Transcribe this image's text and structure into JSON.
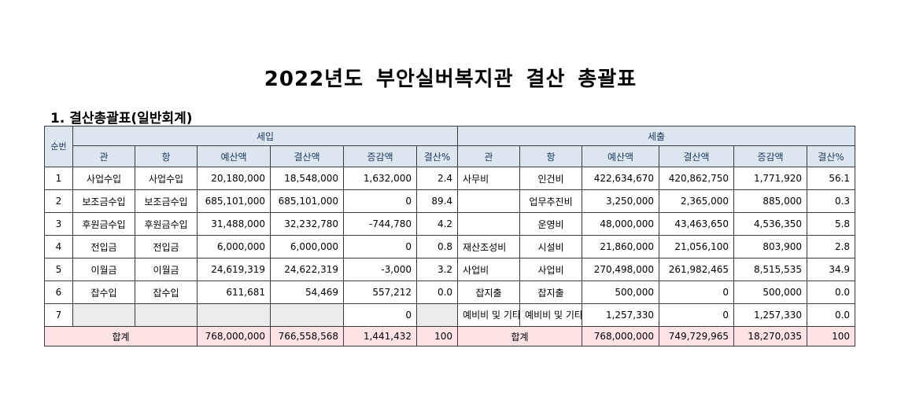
{
  "title": "2022년도 부안실버복지관 결산 총괄표",
  "section_label": "1. 결산총괄표(일반회계)",
  "headers": {
    "sunbeon": "순번",
    "income": "세입",
    "expense": "세출",
    "gwan": "관",
    "hang": "항",
    "budget": "예산액",
    "settled": "결산액",
    "diff": "증감액",
    "pct": "결산%"
  },
  "rows": [
    {
      "no": "1",
      "in_gwan": "사업수입",
      "in_hang": "사업수입",
      "in_budget": "20,180,000",
      "in_settled": "18,548,000",
      "in_diff": "1,632,000",
      "in_pct": "2.4",
      "ex_gwan": "사무비",
      "ex_hang": "인건비",
      "ex_budget": "422,634,670",
      "ex_settled": "420,862,750",
      "ex_diff": "1,771,920",
      "ex_pct": "56.1"
    },
    {
      "no": "2",
      "in_gwan": "보조금수입",
      "in_hang": "보조금수입",
      "in_budget": "685,101,000",
      "in_settled": "685,101,000",
      "in_diff": "0",
      "in_pct": "89.4",
      "ex_gwan": "",
      "ex_hang": "업무추진비",
      "ex_budget": "3,250,000",
      "ex_settled": "2,365,000",
      "ex_diff": "885,000",
      "ex_pct": "0.3"
    },
    {
      "no": "3",
      "in_gwan": "후원금수입",
      "in_hang": "후원금수입",
      "in_budget": "31,488,000",
      "in_settled": "32,232,780",
      "in_diff": "-744,780",
      "in_pct": "4.2",
      "ex_gwan": "",
      "ex_hang": "운영비",
      "ex_budget": "48,000,000",
      "ex_settled": "43,463,650",
      "ex_diff": "4,536,350",
      "ex_pct": "5.8"
    },
    {
      "no": "4",
      "in_gwan": "전입금",
      "in_hang": "전입금",
      "in_budget": "6,000,000",
      "in_settled": "6,000,000",
      "in_diff": "0",
      "in_pct": "0.8",
      "ex_gwan": "재산조성비",
      "ex_hang": "시설비",
      "ex_budget": "21,860,000",
      "ex_settled": "21,056,100",
      "ex_diff": "803,900",
      "ex_pct": "2.8"
    },
    {
      "no": "5",
      "in_gwan": "이월금",
      "in_hang": "이월금",
      "in_budget": "24,619,319",
      "in_settled": "24,622,319",
      "in_diff": "-3,000",
      "in_pct": "3.2",
      "ex_gwan": "사업비",
      "ex_hang": "사업비",
      "ex_budget": "270,498,000",
      "ex_settled": "261,982,465",
      "ex_diff": "8,515,535",
      "ex_pct": "34.9"
    },
    {
      "no": "6",
      "in_gwan": "잡수입",
      "in_hang": "잡수입",
      "in_budget": "611,681",
      "in_settled": "54,469",
      "in_diff": "557,212",
      "in_pct": "0.0",
      "ex_gwan": "잡지출",
      "ex_hang": "잡지출",
      "ex_budget": "500,000",
      "ex_settled": "0",
      "ex_diff": "500,000",
      "ex_pct": "0.0"
    },
    {
      "no": "7",
      "in_gwan": "",
      "in_hang": "",
      "in_budget": "",
      "in_settled": "",
      "in_diff": "0",
      "in_pct": "",
      "ex_gwan": "예비비 및 기타",
      "ex_hang": "예비비 및 기타",
      "ex_budget": "1,257,330",
      "ex_settled": "0",
      "ex_diff": "1,257,330",
      "ex_pct": "0.0"
    }
  ],
  "total": {
    "in_label": "합계",
    "in_budget": "768,000,000",
    "in_settled": "766,558,568",
    "in_diff": "1,441,432",
    "in_pct": "100",
    "ex_label": "합계",
    "ex_budget": "768,000,000",
    "ex_settled": "749,729,965",
    "ex_diff": "18,270,035",
    "ex_pct": "100"
  },
  "colors": {
    "header_bg": "#dbe6f1",
    "header_text": "#1f3a60",
    "total_bg": "#fde3e3",
    "row_alt_bg": "#ececec"
  }
}
